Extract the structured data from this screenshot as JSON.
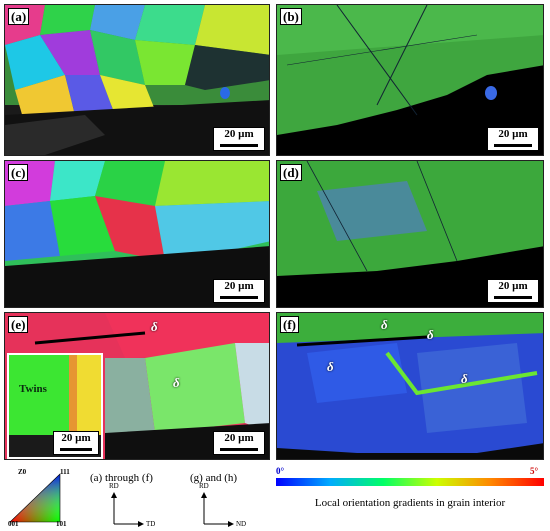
{
  "panels": {
    "a": {
      "label": "(a)",
      "scale": "20 µm"
    },
    "b": {
      "label": "(b)",
      "scale": "20 µm"
    },
    "c": {
      "label": "(c)",
      "scale": "20 µm"
    },
    "d": {
      "label": "(d)",
      "scale": "20 µm"
    },
    "e": {
      "label": "(e)",
      "scale": "20 µm",
      "inset_label": "Twins",
      "inset_scale": "20 µm",
      "delta": "δ"
    },
    "f": {
      "label": "(f)",
      "scale": "",
      "delta": "δ"
    }
  },
  "legend": {
    "triangle": {
      "top": "111",
      "corner_axis": "Z0",
      "left": "001",
      "right": "101"
    },
    "ab_text": "(a) through (f)",
    "gh_text": "(g) and (h)",
    "axes_ab": {
      "up": "RD",
      "right": "TD"
    },
    "axes_gh": {
      "up": "RD",
      "right": "ND"
    }
  },
  "colorbar": {
    "min": "0°",
    "max": "5°",
    "caption": "Local orientation gradients in grain interior"
  }
}
